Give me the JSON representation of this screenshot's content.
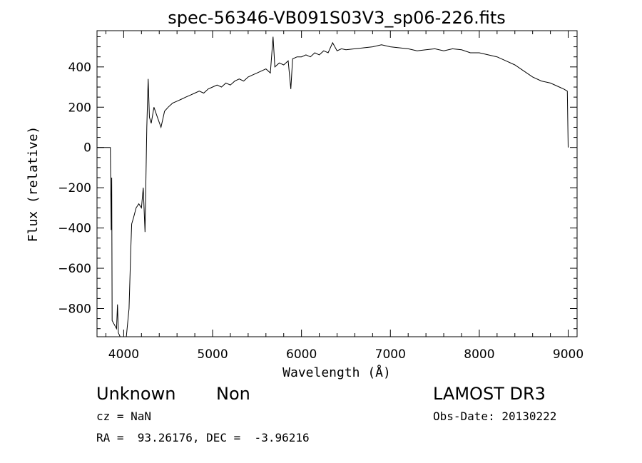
{
  "chart_data": {
    "type": "line",
    "title": "spec-56346-VB091S03V3_sp06-226.fits",
    "xlabel": "Wavelength (Å)",
    "ylabel": "Flux (relative)",
    "xlim": [
      3700,
      9100
    ],
    "ylim": [
      -940,
      580
    ],
    "x_ticks": [
      4000,
      5000,
      6000,
      7000,
      8000,
      9000
    ],
    "y_ticks": [
      -800,
      -600,
      -400,
      -200,
      0,
      200,
      400
    ],
    "grid": false,
    "series": [
      {
        "points": [
          [
            3700,
            0
          ],
          [
            3850,
            0
          ],
          [
            3860,
            -410
          ],
          [
            3865,
            -150
          ],
          [
            3870,
            -860
          ],
          [
            3920,
            -900
          ],
          [
            3930,
            -780
          ],
          [
            3940,
            -920
          ],
          [
            3960,
            -940
          ],
          [
            4030,
            -940
          ],
          [
            4060,
            -800
          ],
          [
            4080,
            -500
          ],
          [
            4090,
            -380
          ],
          [
            4110,
            -350
          ],
          [
            4140,
            -300
          ],
          [
            4170,
            -280
          ],
          [
            4200,
            -300
          ],
          [
            4220,
            -200
          ],
          [
            4240,
            -420
          ],
          [
            4260,
            100
          ],
          [
            4275,
            340
          ],
          [
            4290,
            150
          ],
          [
            4310,
            120
          ],
          [
            4340,
            200
          ],
          [
            4380,
            150
          ],
          [
            4420,
            100
          ],
          [
            4460,
            180
          ],
          [
            4500,
            200
          ],
          [
            4550,
            220
          ],
          [
            4600,
            230
          ],
          [
            4650,
            240
          ],
          [
            4700,
            250
          ],
          [
            4750,
            260
          ],
          [
            4800,
            270
          ],
          [
            4850,
            280
          ],
          [
            4900,
            270
          ],
          [
            4950,
            290
          ],
          [
            5000,
            300
          ],
          [
            5050,
            310
          ],
          [
            5100,
            300
          ],
          [
            5150,
            320
          ],
          [
            5200,
            310
          ],
          [
            5250,
            330
          ],
          [
            5300,
            340
          ],
          [
            5350,
            330
          ],
          [
            5400,
            350
          ],
          [
            5450,
            360
          ],
          [
            5500,
            370
          ],
          [
            5550,
            380
          ],
          [
            5600,
            390
          ],
          [
            5650,
            370
          ],
          [
            5680,
            550
          ],
          [
            5700,
            400
          ],
          [
            5750,
            420
          ],
          [
            5800,
            410
          ],
          [
            5850,
            430
          ],
          [
            5880,
            290
          ],
          [
            5900,
            440
          ],
          [
            5950,
            450
          ],
          [
            6000,
            450
          ],
          [
            6050,
            460
          ],
          [
            6100,
            450
          ],
          [
            6150,
            470
          ],
          [
            6200,
            460
          ],
          [
            6250,
            480
          ],
          [
            6300,
            470
          ],
          [
            6350,
            520
          ],
          [
            6400,
            480
          ],
          [
            6450,
            490
          ],
          [
            6500,
            485
          ],
          [
            6600,
            490
          ],
          [
            6700,
            495
          ],
          [
            6800,
            500
          ],
          [
            6900,
            510
          ],
          [
            7000,
            500
          ],
          [
            7100,
            495
          ],
          [
            7200,
            490
          ],
          [
            7300,
            480
          ],
          [
            7400,
            485
          ],
          [
            7500,
            490
          ],
          [
            7600,
            480
          ],
          [
            7700,
            490
          ],
          [
            7800,
            485
          ],
          [
            7900,
            470
          ],
          [
            8000,
            470
          ],
          [
            8100,
            460
          ],
          [
            8200,
            450
          ],
          [
            8300,
            430
          ],
          [
            8400,
            410
          ],
          [
            8500,
            380
          ],
          [
            8600,
            350
          ],
          [
            8700,
            330
          ],
          [
            8800,
            320
          ],
          [
            8900,
            300
          ],
          [
            8950,
            290
          ],
          [
            8990,
            280
          ],
          [
            9000,
            0
          ]
        ]
      }
    ]
  },
  "footer": {
    "object_class": "Unknown",
    "object_subclass": "Non",
    "survey": "LAMOST DR3",
    "cz": "cz = NaN",
    "obs_date": "Obs-Date: 20130222",
    "coords": "RA =  93.26176, DEC =  -3.96216"
  }
}
